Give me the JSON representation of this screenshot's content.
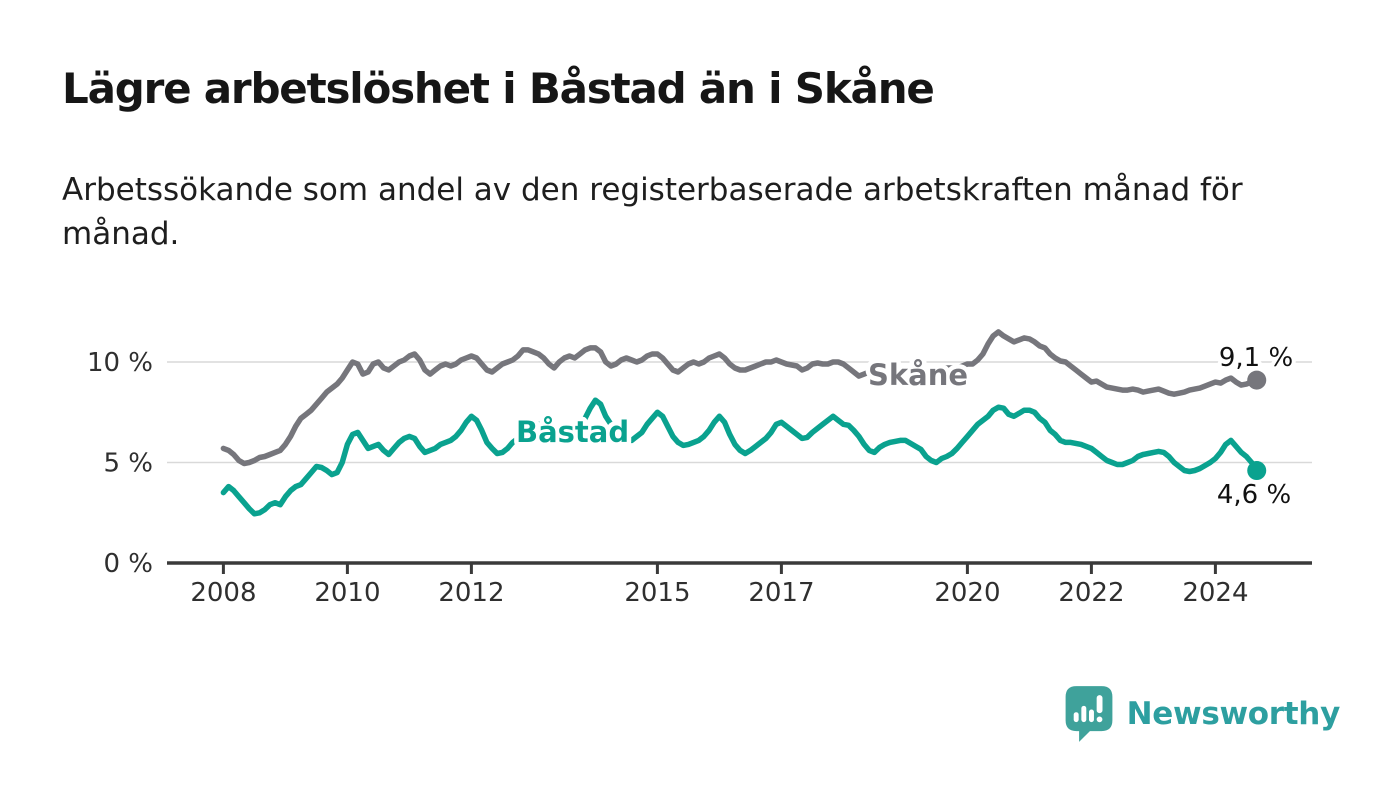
{
  "header": {
    "title": "Lägre arbetslöshet i Båstad än i Skåne",
    "subtitle_line1": "Arbetssökande som andel av den registerbaserade arbetskraften månad för",
    "subtitle_line2": "månad."
  },
  "chart_data": {
    "type": "line",
    "x_axis": {
      "unit": "year-month",
      "start": 2008.0,
      "step": 0.0833333,
      "tick_years": [
        2008,
        2010,
        2012,
        2015,
        2017,
        2020,
        2022,
        2024
      ],
      "tick_labels": [
        "2008",
        "2010",
        "2012",
        "2015",
        "2017",
        "2020",
        "2022",
        "2024"
      ]
    },
    "y_axis": {
      "unit": "percent",
      "ticks": [
        {
          "value": 0,
          "label": "0 %"
        },
        {
          "value": 5,
          "label": "5 %"
        },
        {
          "value": 10,
          "label": "10 %"
        }
      ],
      "gridlines_at": [
        5,
        10
      ],
      "ylim": [
        0,
        12.5
      ]
    },
    "grid": "horizontal",
    "legend_position": "inline-labels",
    "series": [
      {
        "name": "Skåne",
        "color": "#76767C",
        "end_label": "9,1 %",
        "end_value": 9.1,
        "values": [
          5.7,
          5.6,
          5.4,
          5.1,
          4.95,
          5.0,
          5.1,
          5.25,
          5.3,
          5.4,
          5.5,
          5.6,
          5.9,
          6.3,
          6.8,
          7.2,
          7.4,
          7.6,
          7.9,
          8.2,
          8.5,
          8.7,
          8.9,
          9.2,
          9.6,
          10.0,
          9.9,
          9.4,
          9.5,
          9.9,
          10.0,
          9.7,
          9.6,
          9.8,
          10.0,
          10.1,
          10.3,
          10.4,
          10.1,
          9.6,
          9.4,
          9.6,
          9.8,
          9.9,
          9.8,
          9.9,
          10.1,
          10.2,
          10.3,
          10.2,
          9.9,
          9.6,
          9.5,
          9.7,
          9.9,
          10.0,
          10.1,
          10.3,
          10.6,
          10.6,
          10.5,
          10.4,
          10.2,
          9.9,
          9.7,
          10.0,
          10.2,
          10.3,
          10.2,
          10.4,
          10.6,
          10.7,
          10.7,
          10.5,
          10.0,
          9.8,
          9.9,
          10.1,
          10.2,
          10.1,
          10.0,
          10.1,
          10.3,
          10.4,
          10.4,
          10.2,
          9.9,
          9.6,
          9.5,
          9.7,
          9.9,
          10.0,
          9.9,
          10.0,
          10.2,
          10.3,
          10.4,
          10.2,
          9.9,
          9.7,
          9.6,
          9.6,
          9.7,
          9.8,
          9.9,
          10.0,
          10.0,
          10.1,
          10.0,
          9.9,
          9.85,
          9.8,
          9.6,
          9.7,
          9.9,
          9.95,
          9.9,
          9.9,
          10.0,
          10.0,
          9.9,
          9.7,
          9.5,
          9.3,
          9.4,
          9.5,
          9.6,
          9.6,
          9.5,
          9.5,
          9.6,
          9.6,
          9.6,
          9.5,
          9.4,
          9.4,
          9.5,
          9.6,
          9.7,
          9.7,
          9.7,
          9.7,
          9.7,
          9.8,
          9.9,
          9.9,
          10.1,
          10.4,
          10.9,
          11.3,
          11.5,
          11.3,
          11.15,
          11.0,
          11.1,
          11.2,
          11.15,
          11.0,
          10.8,
          10.7,
          10.4,
          10.2,
          10.05,
          10.0,
          9.8,
          9.6,
          9.4,
          9.2,
          9.0,
          9.05,
          8.9,
          8.75,
          8.7,
          8.65,
          8.6,
          8.6,
          8.65,
          8.6,
          8.5,
          8.55,
          8.6,
          8.65,
          8.55,
          8.45,
          8.4,
          8.45,
          8.5,
          8.6,
          8.65,
          8.7,
          8.8,
          8.9,
          9.0,
          8.95,
          9.1,
          9.2,
          9.0,
          8.85,
          8.9,
          9.0,
          9.1
        ]
      },
      {
        "name": "Båstad",
        "color": "#0AA28F",
        "end_label": "4,6 %",
        "end_value": 4.6,
        "values": [
          3.5,
          3.8,
          3.6,
          3.3,
          3.0,
          2.7,
          2.45,
          2.5,
          2.65,
          2.9,
          3.0,
          2.9,
          3.3,
          3.6,
          3.8,
          3.9,
          4.2,
          4.5,
          4.8,
          4.75,
          4.6,
          4.4,
          4.5,
          5.0,
          5.9,
          6.4,
          6.5,
          6.1,
          5.7,
          5.8,
          5.9,
          5.6,
          5.4,
          5.7,
          6.0,
          6.2,
          6.3,
          6.2,
          5.8,
          5.5,
          5.6,
          5.7,
          5.9,
          6.0,
          6.1,
          6.3,
          6.6,
          7.0,
          7.3,
          7.1,
          6.6,
          6.0,
          5.7,
          5.45,
          5.5,
          5.7,
          6.0,
          6.2,
          6.5,
          6.8,
          7.0,
          6.9,
          6.6,
          6.3,
          6.1,
          6.0,
          6.2,
          6.4,
          6.5,
          6.8,
          7.2,
          7.7,
          8.1,
          7.9,
          7.3,
          6.9,
          6.6,
          6.4,
          6.2,
          6.1,
          6.3,
          6.5,
          6.9,
          7.2,
          7.5,
          7.3,
          6.8,
          6.3,
          6.0,
          5.85,
          5.9,
          6.0,
          6.1,
          6.3,
          6.6,
          7.0,
          7.3,
          7.0,
          6.4,
          5.9,
          5.6,
          5.45,
          5.6,
          5.8,
          6.0,
          6.2,
          6.5,
          6.9,
          7.0,
          6.8,
          6.6,
          6.4,
          6.2,
          6.25,
          6.5,
          6.7,
          6.9,
          7.1,
          7.3,
          7.1,
          6.9,
          6.85,
          6.6,
          6.3,
          5.9,
          5.6,
          5.5,
          5.75,
          5.9,
          6.0,
          6.05,
          6.1,
          6.1,
          5.95,
          5.8,
          5.65,
          5.3,
          5.1,
          5.0,
          5.2,
          5.3,
          5.45,
          5.7,
          6.0,
          6.3,
          6.6,
          6.9,
          7.1,
          7.3,
          7.6,
          7.75,
          7.7,
          7.4,
          7.3,
          7.45,
          7.6,
          7.6,
          7.5,
          7.2,
          7.0,
          6.6,
          6.4,
          6.1,
          6.0,
          6.0,
          5.95,
          5.9,
          5.8,
          5.7,
          5.5,
          5.3,
          5.1,
          5.0,
          4.9,
          4.9,
          5.0,
          5.1,
          5.3,
          5.4,
          5.45,
          5.5,
          5.55,
          5.5,
          5.3,
          5.0,
          4.8,
          4.6,
          4.55,
          4.6,
          4.7,
          4.85,
          5.0,
          5.2,
          5.5,
          5.9,
          6.1,
          5.8,
          5.5,
          5.3,
          5.0,
          4.6
        ]
      }
    ]
  },
  "footer": {
    "brand": "Newsworthy",
    "brand_color": "#2D9FA0",
    "bubble_color": "#3FA29B"
  }
}
